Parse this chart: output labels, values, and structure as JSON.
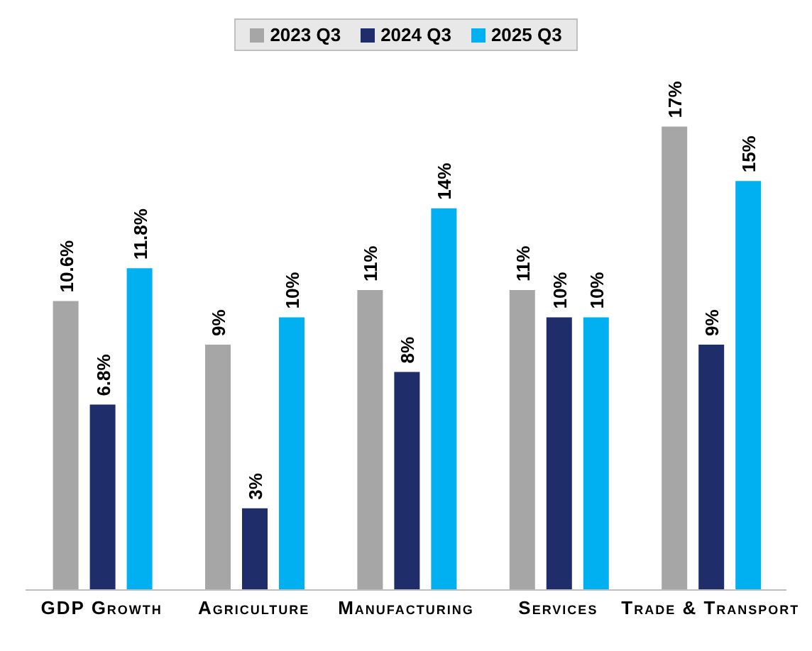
{
  "chart_data": {
    "type": "bar",
    "categories": [
      "GDP Growth",
      "Agriculture",
      "Manufacturing",
      "Services",
      "Trade & Transport"
    ],
    "series": [
      {
        "name": "2023 Q3",
        "color": "#a6a6a6",
        "values": [
          10.6,
          9,
          11,
          11,
          17
        ],
        "value_labels": [
          "10.6%",
          "9%",
          "11%",
          "11%",
          "17%"
        ]
      },
      {
        "name": "2024 Q3",
        "color": "#1f2d6b",
        "values": [
          6.8,
          3,
          8,
          10,
          9
        ],
        "value_labels": [
          "6.8%",
          "3%",
          "8%",
          "10%",
          "9%"
        ]
      },
      {
        "name": "2025 Q3",
        "color": "#00b0f0",
        "values": [
          11.8,
          10,
          14,
          10,
          15
        ],
        "value_labels": [
          "11.8%",
          "10%",
          "14%",
          "10%",
          "15%"
        ]
      }
    ],
    "legend": "top",
    "grid": false
  }
}
